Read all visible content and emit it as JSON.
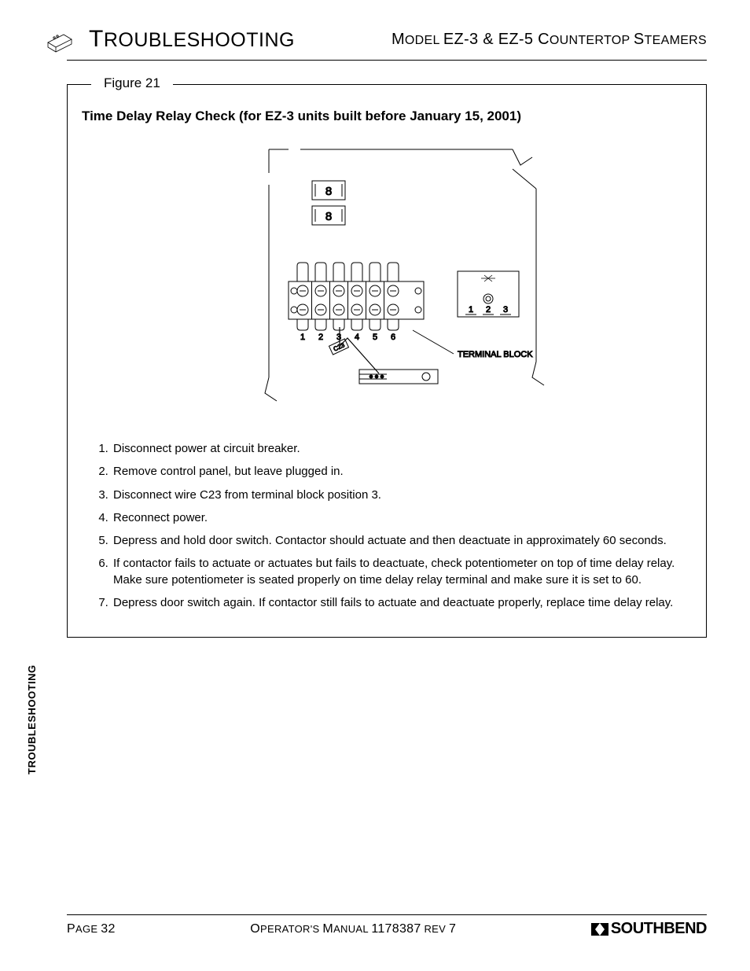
{
  "header": {
    "title_html": "<span class='big'>T</span>ROUBLESHOOTING",
    "subtitle_html": "<span class='big'>M</span>ODEL <span class='big'>EZ-3 &amp; EZ-5 C</span>OUNTERTOP <span class='big'>S</span>TEAMERS"
  },
  "figure": {
    "legend": "Figure 21",
    "title": "Time Delay Relay Check (for EZ-3 units built before January 15, 2001)",
    "diagram": {
      "display_top": [
        "8",
        "8"
      ],
      "terminal_numbers": [
        "1",
        "2",
        "3",
        "4",
        "5",
        "6"
      ],
      "right_block_numbers": [
        "1",
        "2",
        "3"
      ],
      "wire_label": "C23",
      "callout": "TERMINAL BLOCK"
    },
    "steps": [
      "Disconnect power at circuit breaker.",
      "Remove control panel, but leave plugged in.",
      "Disconnect wire C23 from terminal block position 3.",
      "Reconnect power.",
      "Depress and hold door switch.  Contactor should actuate and then deactuate in approximately 60 seconds.",
      "If contactor fails to actuate or actuates but fails to deactuate, check potentiometer on top of time delay relay.  Make sure potentiometer is seated properly on time delay relay terminal and make sure it is set to 60.",
      "Depress door switch again.  If contactor still fails to actuate and deactuate properly, replace time delay relay."
    ]
  },
  "side_tab": "TROUBLESHOOTING",
  "footer": {
    "left_html": "<span class='big'>P</span>AGE <span class='big'>32</span>",
    "center_html": "<span class='big'>O</span>PERATOR'S <span class='big'>M</span>ANUAL <span class='big'>1178387</span> REV <span class='big'>7</span>",
    "brand": "SOUTHBEND"
  },
  "colors": {
    "text": "#000000",
    "background": "#ffffff",
    "border": "#000000"
  }
}
